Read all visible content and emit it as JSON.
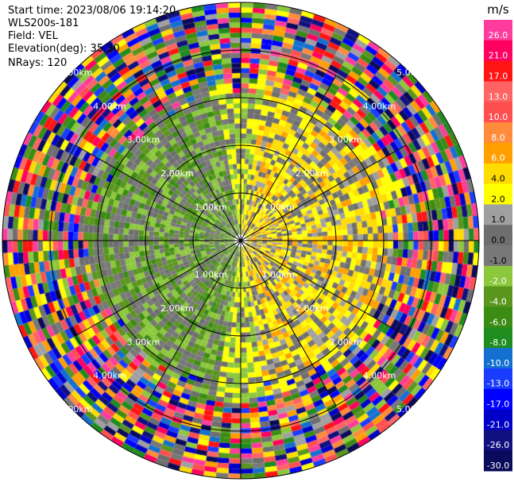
{
  "header": {
    "start_time": "Start time: 2023/08/06 19:14:20",
    "device": "WLS200s-181",
    "field": "Field: VEL",
    "elevation": "Elevation(deg): 35.30",
    "nrays": "NRays: 120"
  },
  "chart_data": {
    "type": "heatmap",
    "projection": "polar-ppi",
    "field": "VEL",
    "n_rays": 120,
    "max_range_km": 5.0,
    "range_rings_km": [
      1.0,
      2.0,
      3.0,
      4.0,
      5.0
    ],
    "range_labels": [
      "1.00km",
      "2.00km",
      "3.00km",
      "4.00km",
      "5.00km"
    ],
    "colorbar": {
      "unit": "m/s",
      "levels": [
        -30.0,
        -26.0,
        -21.0,
        -17.0,
        -13.0,
        -10.0,
        -8.0,
        -6.0,
        -4.0,
        -2.0,
        -1.0,
        0.0,
        1.0,
        2.0,
        4.0,
        6.0,
        8.0,
        10.0,
        13.0,
        17.0,
        21.0,
        26.0
      ],
      "tick_labels": [
        "-30.0",
        "-26.0",
        "-21.0",
        "-17.0",
        "-13.0",
        "-10.0",
        "-8.0",
        "-6.0",
        "-4.0",
        "-2.0",
        "-1.0",
        "0.0",
        "1.0",
        "2.0",
        "4.0",
        "6.0",
        "8.0",
        "10.0",
        "13.0",
        "17.0",
        "21.0",
        "26.0"
      ],
      "colors": [
        "#0a0a5a",
        "#101080",
        "#0000c8",
        "#0000ff",
        "#1a3cff",
        "#1470d0",
        "#1e8c1e",
        "#3c8c14",
        "#5a961e",
        "#8cc83c",
        "#787878",
        "#6e6e6e",
        "#a0a0a0",
        "#ffff00",
        "#ffdc00",
        "#ffa000",
        "#ff8c3c",
        "#ff5050",
        "#ff6464",
        "#ff1414",
        "#ff0060",
        "#ff3c9c"
      ]
    }
  }
}
